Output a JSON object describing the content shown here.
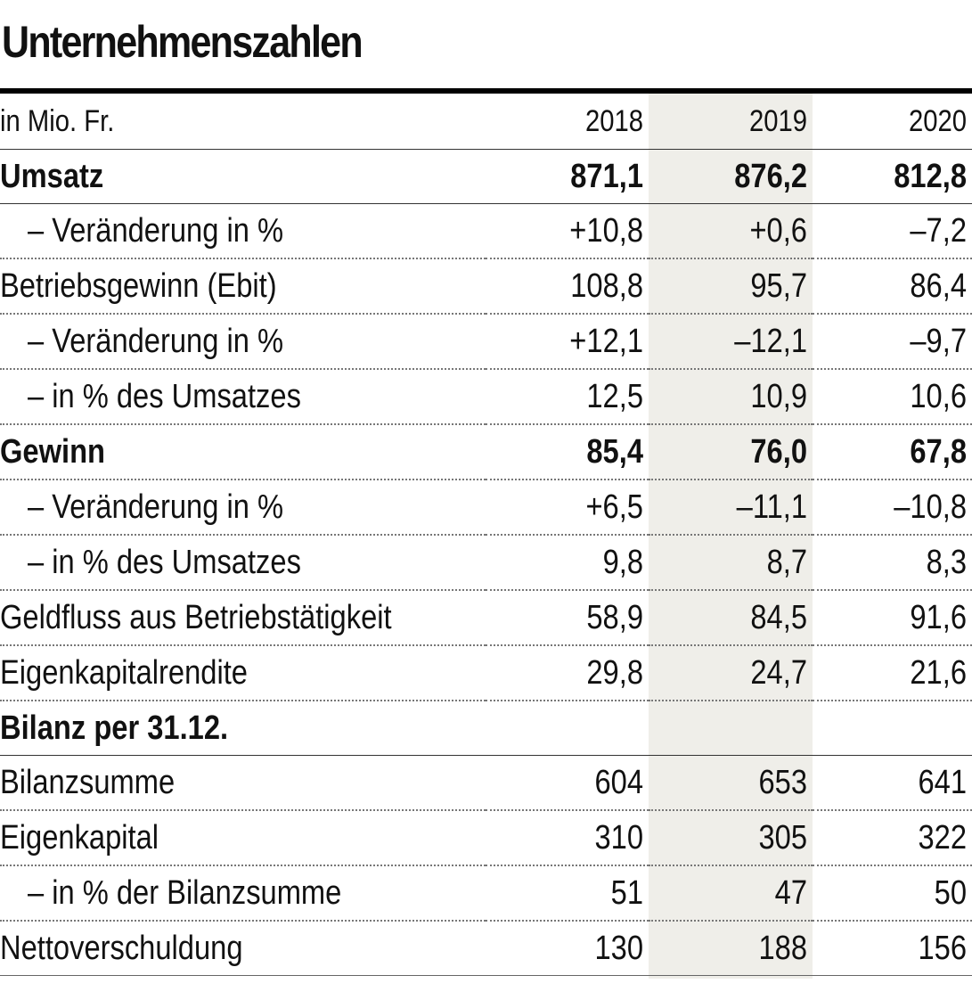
{
  "title": "Unternehmenszahlen",
  "header": {
    "unit": "in Mio. Fr.",
    "years": [
      "2018",
      "2019",
      "2020"
    ]
  },
  "rows": [
    {
      "label": "Umsatz",
      "values": [
        "871,1",
        "876,2",
        "812,8"
      ]
    },
    {
      "label": "– Veränderung in %",
      "values": [
        "+10,8",
        "+0,6",
        "–7,2"
      ]
    },
    {
      "label": "Betriebsgewinn (Ebit)",
      "values": [
        "108,8",
        "95,7",
        "86,4"
      ]
    },
    {
      "label": "– Veränderung in %",
      "values": [
        "+12,1",
        "–12,1",
        "–9,7"
      ]
    },
    {
      "label": "– in % des Umsatzes",
      "values": [
        "12,5",
        "10,9",
        "10,6"
      ]
    },
    {
      "label": "Gewinn",
      "values": [
        "85,4",
        "76,0",
        "67,8"
      ]
    },
    {
      "label": "– Veränderung in %",
      "values": [
        "+6,5",
        "–11,1",
        "–10,8"
      ]
    },
    {
      "label": "– in % des Umsatzes",
      "values": [
        "9,8",
        "8,7",
        "8,3"
      ]
    },
    {
      "label": "Geldfluss aus Betriebstätigkeit",
      "values": [
        "58,9",
        "84,5",
        "91,6"
      ]
    },
    {
      "label": "Eigenkapitalrendite",
      "values": [
        "29,8",
        "24,7",
        "21,6"
      ]
    },
    {
      "label": "Bilanz per 31.12.",
      "values": [
        "",
        "",
        ""
      ]
    },
    {
      "label": "Bilanzsumme",
      "values": [
        "604",
        "653",
        "641"
      ]
    },
    {
      "label": "Eigenkapital",
      "values": [
        "310",
        "305",
        "322"
      ]
    },
    {
      "label": "– in % der Bilanzsumme",
      "values": [
        "51",
        "47",
        "50"
      ]
    },
    {
      "label": "Nettoverschuldung",
      "values": [
        "130",
        "188",
        "156"
      ]
    }
  ]
}
